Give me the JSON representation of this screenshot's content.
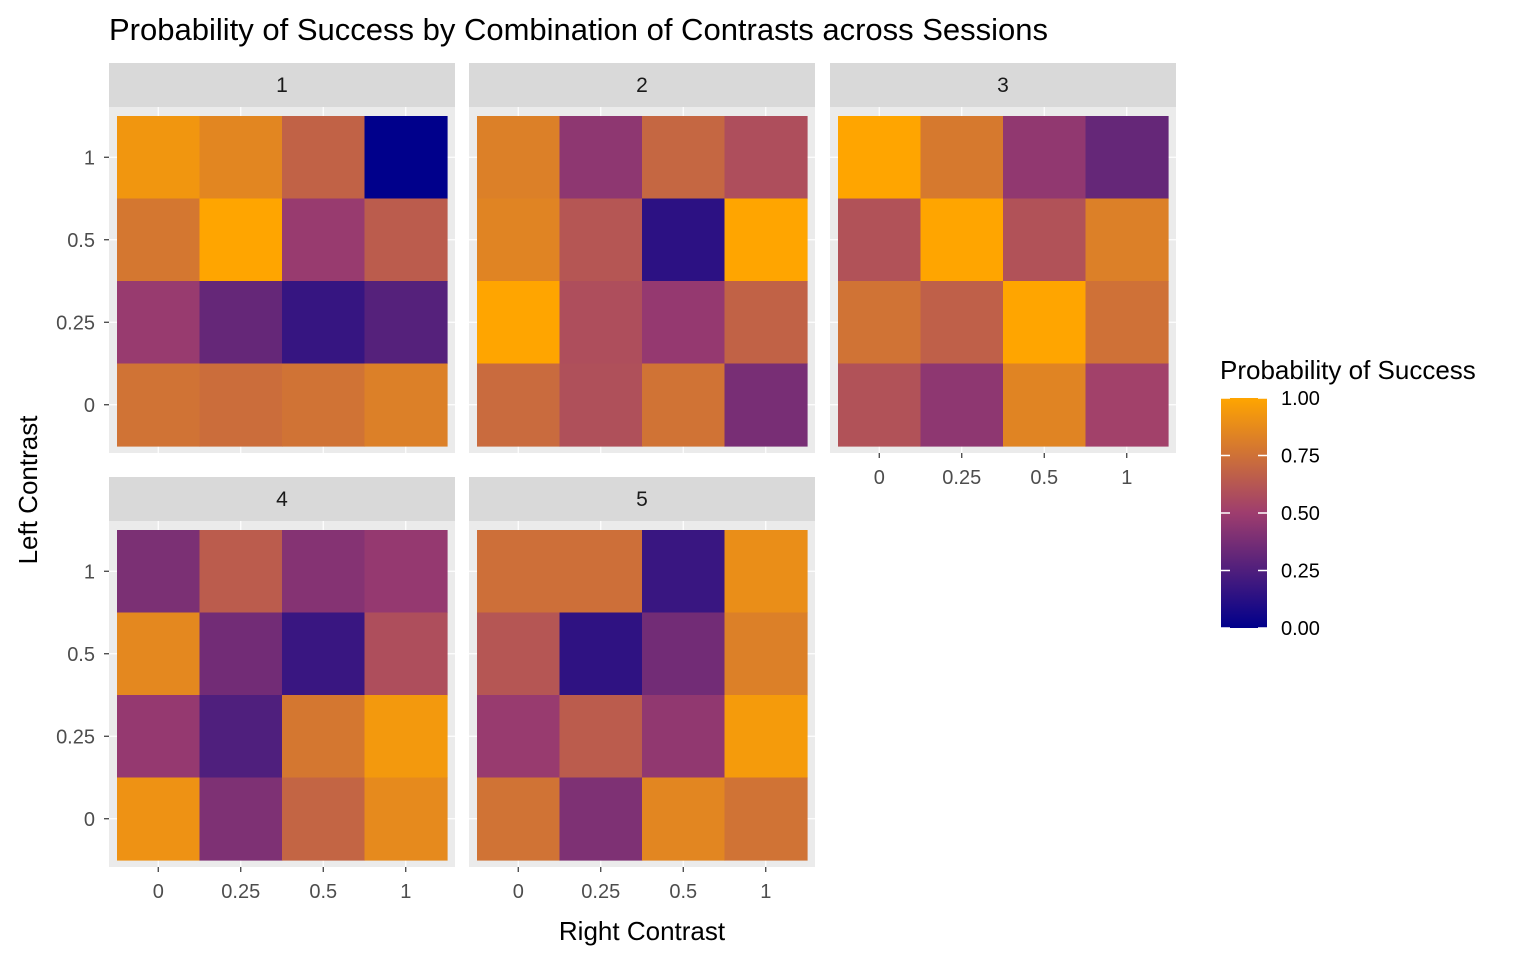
{
  "chart_data": {
    "type": "heatmap",
    "title": "Probability of Success by Combination of Contrasts across Sessions",
    "xlabel": "Right Contrast",
    "ylabel": "Left Contrast",
    "x_categories": [
      "0",
      "0.25",
      "0.5",
      "1"
    ],
    "y_categories": [
      "0",
      "0.25",
      "0.5",
      "1"
    ],
    "facet_variable": "session",
    "legend": {
      "title": "Probability of Success",
      "position": "right",
      "range": [
        0,
        1
      ],
      "breaks": [
        "0.00",
        "0.25",
        "0.50",
        "0.75",
        "1.00"
      ],
      "low_color": "#00008B",
      "mid_color": "#9E3D6E",
      "high_color": "#FFA500"
    },
    "grid": true,
    "panels": [
      {
        "label": "1",
        "rows_top_to_bottom": [
          "1",
          "0.5",
          "0.25",
          "0"
        ],
        "values": [
          [
            0.93,
            0.85,
            0.68,
            0.0
          ],
          [
            0.78,
            1.0,
            0.48,
            0.65
          ],
          [
            0.48,
            0.32,
            0.17,
            0.27
          ],
          [
            0.76,
            0.73,
            0.76,
            0.82
          ]
        ]
      },
      {
        "label": "2",
        "rows_top_to_bottom": [
          "1",
          "0.5",
          "0.25",
          "0"
        ],
        "values": [
          [
            0.82,
            0.45,
            0.7,
            0.58
          ],
          [
            0.84,
            0.62,
            0.14,
            1.0
          ],
          [
            1.0,
            0.58,
            0.47,
            0.68
          ],
          [
            0.72,
            0.59,
            0.76,
            0.38
          ]
        ]
      },
      {
        "label": "3",
        "rows_top_to_bottom": [
          "1",
          "0.5",
          "0.25",
          "0"
        ],
        "values": [
          [
            1.0,
            0.79,
            0.46,
            0.32
          ],
          [
            0.6,
            1.0,
            0.6,
            0.82
          ],
          [
            0.76,
            0.67,
            1.0,
            0.75
          ],
          [
            0.6,
            0.45,
            0.84,
            0.52
          ]
        ]
      },
      {
        "label": "4",
        "rows_top_to_bottom": [
          "1",
          "0.5",
          "0.25",
          "0"
        ],
        "values": [
          [
            0.39,
            0.65,
            0.42,
            0.47
          ],
          [
            0.86,
            0.36,
            0.18,
            0.58
          ],
          [
            0.47,
            0.25,
            0.78,
            0.94
          ],
          [
            0.91,
            0.4,
            0.69,
            0.87
          ]
        ]
      },
      {
        "label": "5",
        "rows_top_to_bottom": [
          "1",
          "0.5",
          "0.25",
          "0"
        ],
        "values": [
          [
            0.74,
            0.74,
            0.18,
            0.89
          ],
          [
            0.62,
            0.15,
            0.36,
            0.82
          ],
          [
            0.48,
            0.65,
            0.46,
            0.95
          ],
          [
            0.76,
            0.4,
            0.85,
            0.76
          ]
        ]
      }
    ]
  }
}
